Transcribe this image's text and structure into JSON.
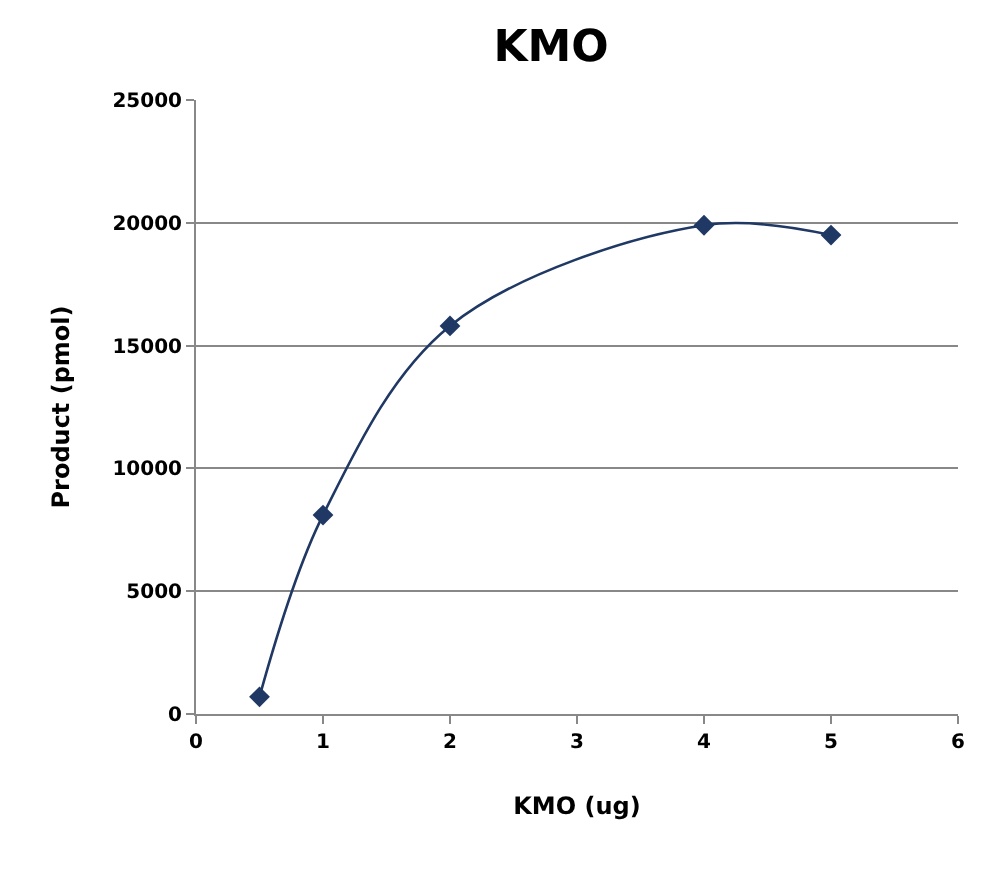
{
  "chart_data": {
    "type": "line",
    "title": "KMO",
    "xlabel": "KMO (ug)",
    "ylabel": "Product (pmol)",
    "x": [
      0.5,
      1,
      2,
      4,
      5
    ],
    "series": [
      {
        "color": "#1f3864",
        "values": [
          700,
          8100,
          15800,
          19900,
          19500
        ]
      }
    ],
    "xlim": [
      0,
      6
    ],
    "xticks": [
      0,
      1,
      2,
      3,
      4,
      5,
      6
    ],
    "ylim": [
      0,
      25000
    ],
    "yticks": [
      0,
      5000,
      10000,
      15000,
      20000,
      25000
    ],
    "grid": "y",
    "marker": "diamond",
    "line_style": "solid"
  }
}
